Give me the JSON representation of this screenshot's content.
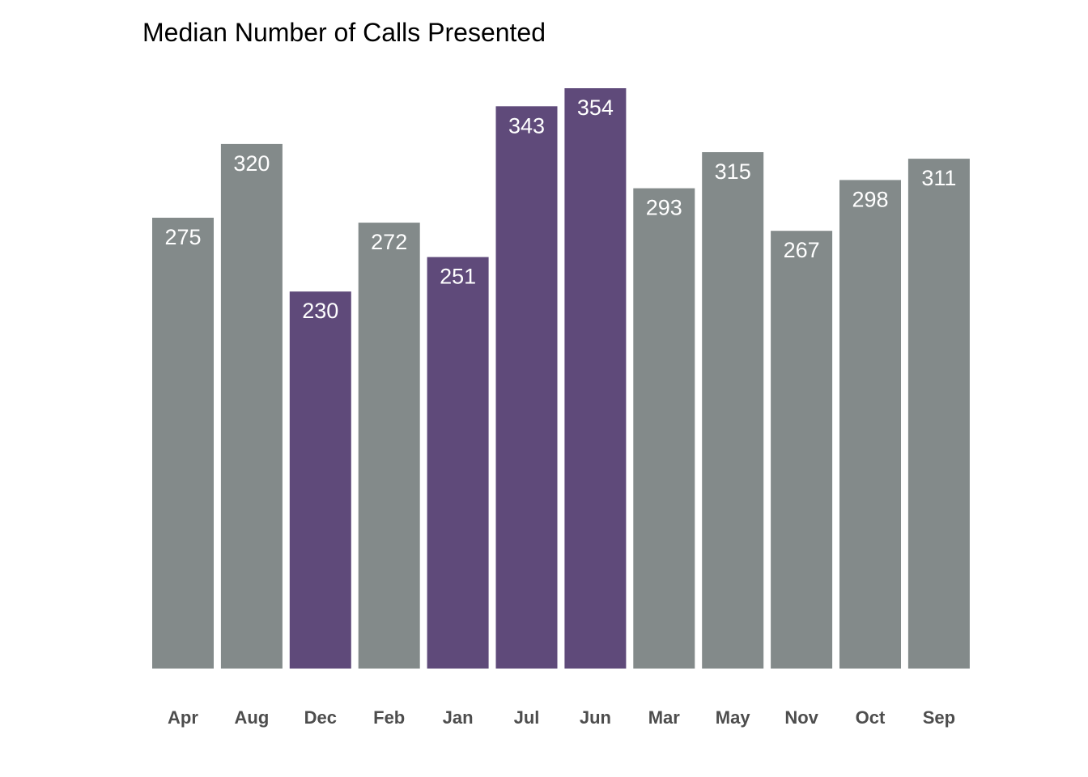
{
  "chart_data": {
    "type": "bar",
    "title": "Median Number of Calls Presented",
    "xlabel": "",
    "ylabel": "",
    "grid": false,
    "categories": [
      "Apr",
      "Aug",
      "Dec",
      "Feb",
      "Jan",
      "Jul",
      "Jun",
      "Mar",
      "May",
      "Nov",
      "Oct",
      "Sep"
    ],
    "values": [
      275,
      320,
      230,
      272,
      251,
      343,
      354,
      293,
      315,
      267,
      298,
      311
    ],
    "highlighted": [
      false,
      false,
      true,
      false,
      true,
      true,
      true,
      false,
      false,
      false,
      false,
      false
    ],
    "ylim": [
      0,
      354
    ],
    "colors": {
      "default_bar": "#838a8a",
      "highlight_bar": "#5f4a7a",
      "value_label": "#ffffff",
      "category_label": "#4d4d4d",
      "title": "#000000"
    }
  }
}
